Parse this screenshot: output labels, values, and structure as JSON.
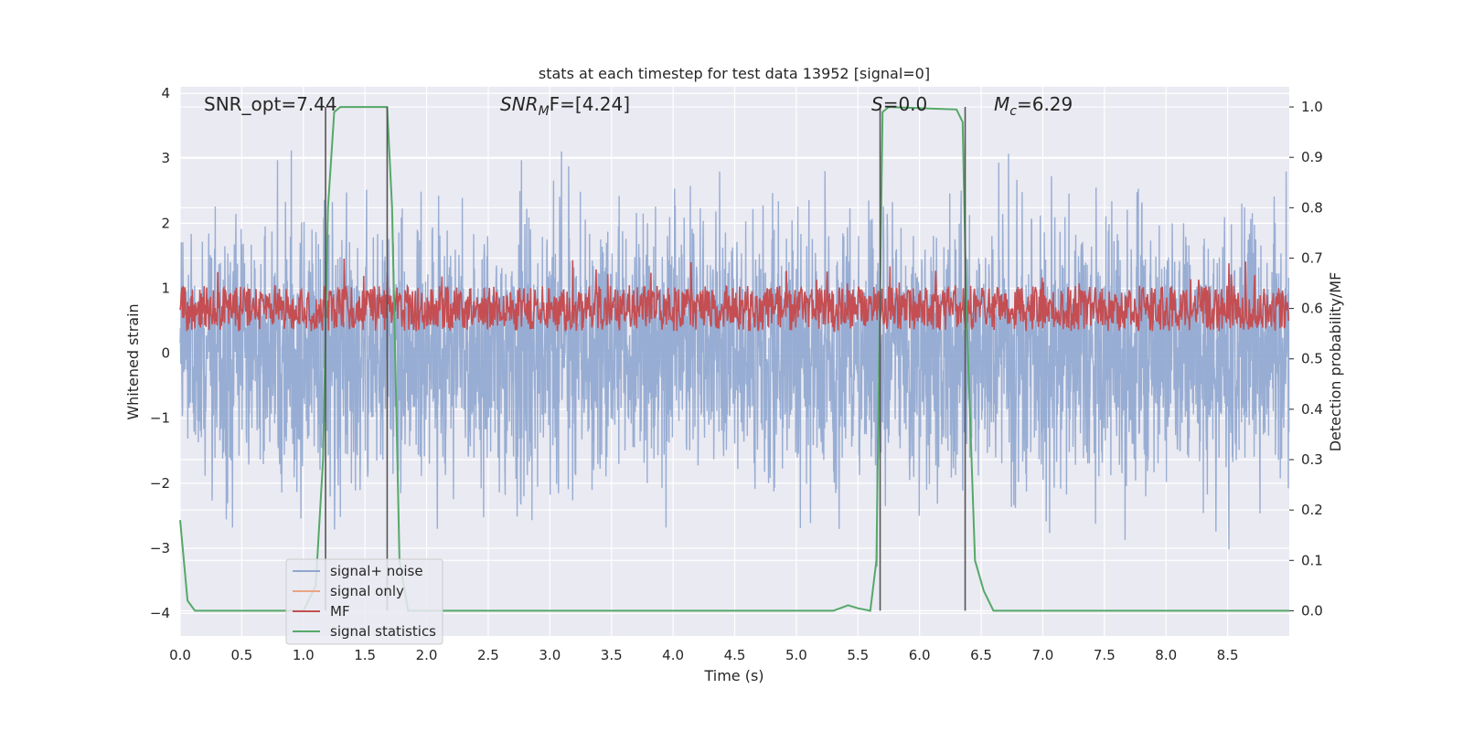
{
  "chart_data": {
    "type": "line",
    "title": "stats at each timestep for test data 13952 [signal=0]",
    "xlabel": "Time (s)",
    "ylabel": "Whitened strain",
    "y2label": "Detection probability/MF",
    "xlim": [
      0,
      9
    ],
    "ylim": [
      -4.35,
      4.1
    ],
    "y2lim": [
      -0.05,
      1.04
    ],
    "x_ticks": [
      "0.0",
      "0.5",
      "1.0",
      "1.5",
      "2.0",
      "2.5",
      "3.0",
      "3.5",
      "4.0",
      "4.5",
      "5.0",
      "5.5",
      "6.0",
      "6.5",
      "7.0",
      "7.5",
      "8.0",
      "8.5"
    ],
    "y_ticks": [
      "4",
      "3",
      "2",
      "1",
      "0",
      "−1",
      "−2",
      "−3",
      "−4"
    ],
    "y2_ticks": [
      "1.0",
      "0.9",
      "0.8",
      "0.7",
      "0.6",
      "0.5",
      "0.4",
      "0.3",
      "0.2",
      "0.1",
      "0.0"
    ],
    "grid": true,
    "annotations": {
      "snr_opt": "SNR_opt=7.44",
      "snr_mf_prefix": "SNR",
      "snr_mf_sub": "M",
      "snr_mf_suffix": "F=[4.24]",
      "s_prefix": "S",
      "s_suffix": "=0.0",
      "mc_prefix": "M",
      "mc_sub": "c",
      "mc_suffix": "=6.29"
    },
    "legend": {
      "position": "lower-left",
      "entries": [
        "signal+ noise",
        "signal only",
        "MF",
        "signal statistics"
      ]
    },
    "colors": {
      "signal_noise": "#8fa6cf",
      "signal_only": "#e8a583",
      "mf": "#c44e52",
      "signal_stats": "#55a868",
      "vlines": "#555555",
      "background": "#eaeaf2"
    },
    "series": [
      {
        "name": "signal+ noise",
        "description_values": "whitened strain noise, roughly within [-3.5, 3.5]",
        "sample_rate_hz": 400,
        "std": 1.0
      },
      {
        "name": "signal only",
        "values": []
      },
      {
        "name": "MF",
        "baseline": 0.6,
        "range": [
          0.5,
          0.72
        ],
        "axis": "right"
      },
      {
        "name": "signal statistics",
        "axis": "right",
        "x": [
          0.0,
          0.06,
          0.12,
          0.5,
          1.0,
          1.1,
          1.16,
          1.2,
          1.25,
          1.3,
          1.65,
          1.68,
          1.72,
          1.78,
          1.85,
          2.0,
          5.3,
          5.42,
          5.5,
          5.6,
          5.65,
          5.7,
          5.75,
          6.3,
          6.35,
          6.38,
          6.45,
          6.52,
          6.6,
          7.0,
          9.0
        ],
        "y": [
          0.18,
          0.02,
          0.0,
          0.0,
          0.0,
          0.05,
          0.3,
          0.8,
          0.99,
          1.0,
          1.0,
          1.0,
          0.8,
          0.1,
          0.0,
          0.0,
          0.0,
          0.011,
          0.005,
          0.0,
          0.1,
          0.99,
          1.0,
          0.995,
          0.97,
          0.6,
          0.1,
          0.04,
          0.0,
          0.0,
          0.0
        ]
      }
    ],
    "vertical_lines_x": [
      1.18,
      1.68,
      5.68,
      6.37
    ]
  }
}
